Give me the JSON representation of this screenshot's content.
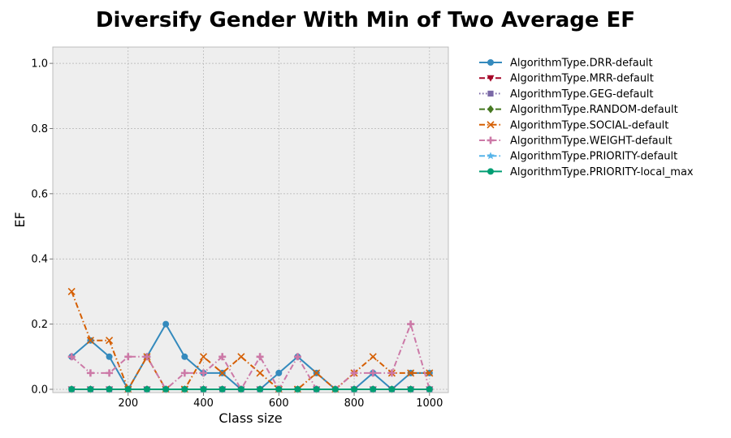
{
  "chart_data": {
    "type": "line",
    "title": "Diversify Gender With Min of Two Average EF",
    "xlabel": "Class size",
    "ylabel": "EF",
    "xlim": [
      0,
      1050
    ],
    "ylim": [
      -0.01,
      1.05
    ],
    "xticks": [
      200,
      400,
      600,
      800,
      1000
    ],
    "yticks": [
      0.0,
      0.2,
      0.4,
      0.6,
      0.8,
      1.0
    ],
    "grid": true,
    "legend_position": "outside-right",
    "x": [
      50,
      100,
      150,
      200,
      250,
      300,
      350,
      400,
      450,
      500,
      550,
      600,
      650,
      700,
      750,
      800,
      850,
      900,
      950,
      1000
    ],
    "series": [
      {
        "name": "AlgorithmType.DRR-default",
        "color": "#348ABD",
        "dash": "solid",
        "marker": "circle",
        "values": [
          0.1,
          0.15,
          0.1,
          0.0,
          0.1,
          0.2,
          0.1,
          0.05,
          0.05,
          0.0,
          0.0,
          0.05,
          0.1,
          0.05,
          0.0,
          0.0,
          0.05,
          0.0,
          0.05,
          0.05
        ]
      },
      {
        "name": "AlgorithmType.MRR-default",
        "color": "#A60628",
        "dash": "dashed",
        "marker": "triangle-down",
        "values": [
          0.0,
          0.0,
          0.0,
          0.0,
          0.0,
          0.0,
          0.0,
          0.0,
          0.0,
          0.0,
          0.0,
          0.0,
          0.0,
          0.0,
          0.0,
          0.0,
          0.0,
          0.0,
          0.0,
          0.0
        ]
      },
      {
        "name": "AlgorithmType.GEG-default",
        "color": "#7A68A6",
        "dash": "dotted",
        "marker": "square",
        "values": [
          0.0,
          0.0,
          0.0,
          0.0,
          0.0,
          0.0,
          0.0,
          0.0,
          0.0,
          0.0,
          0.0,
          0.0,
          0.0,
          0.0,
          0.0,
          0.0,
          0.0,
          0.0,
          0.0,
          0.0
        ]
      },
      {
        "name": "AlgorithmType.RANDOM-default",
        "color": "#467821",
        "dash": "dashed",
        "marker": "diamond",
        "values": [
          0.0,
          0.0,
          0.0,
          0.0,
          0.0,
          0.0,
          0.0,
          0.0,
          0.0,
          0.0,
          0.0,
          0.0,
          0.0,
          0.0,
          0.0,
          0.0,
          0.0,
          0.0,
          0.0,
          0.0
        ]
      },
      {
        "name": "AlgorithmType.SOCIAL-default",
        "color": "#D55E00",
        "dash": "dashdot",
        "marker": "x",
        "values": [
          0.3,
          0.15,
          0.15,
          0.0,
          0.1,
          0.0,
          0.0,
          0.1,
          0.05,
          0.1,
          0.05,
          0.0,
          0.0,
          0.05,
          0.0,
          0.05,
          0.1,
          0.05,
          0.05,
          0.05
        ]
      },
      {
        "name": "AlgorithmType.WEIGHT-default",
        "color": "#CC79A7",
        "dash": "dashdot",
        "marker": "plus",
        "values": [
          0.1,
          0.05,
          0.05,
          0.1,
          0.1,
          0.0,
          0.05,
          0.05,
          0.1,
          0.0,
          0.1,
          0.0,
          0.1,
          0.0,
          0.0,
          0.05,
          0.05,
          0.05,
          0.2,
          0.0
        ]
      },
      {
        "name": "AlgorithmType.PRIORITY-default",
        "color": "#56B4E9",
        "dash": "dashdot",
        "marker": "star",
        "values": [
          0.0,
          0.0,
          0.0,
          0.0,
          0.0,
          0.0,
          0.0,
          0.0,
          0.0,
          0.0,
          0.0,
          0.0,
          0.0,
          0.0,
          0.0,
          0.0,
          0.0,
          0.0,
          0.0,
          0.0
        ]
      },
      {
        "name": "AlgorithmType.PRIORITY-local_max",
        "color": "#009E73",
        "dash": "solid",
        "marker": "circle",
        "values": [
          0.0,
          0.0,
          0.0,
          0.0,
          0.0,
          0.0,
          0.0,
          0.0,
          0.0,
          0.0,
          0.0,
          0.0,
          0.0,
          0.0,
          0.0,
          0.0,
          0.0,
          0.0,
          0.0,
          0.0
        ]
      }
    ],
    "colors": {
      "plot_background": "#EEEEEE",
      "plot_border": "#BCBCBC",
      "grid": "#B2B2B2"
    }
  }
}
